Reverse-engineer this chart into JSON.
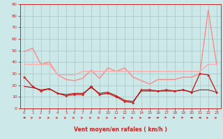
{
  "x": [
    0,
    1,
    2,
    3,
    4,
    5,
    6,
    7,
    8,
    9,
    10,
    11,
    12,
    13,
    14,
    15,
    16,
    17,
    18,
    19,
    20,
    21,
    22,
    23
  ],
  "line_rafales_max": [
    49,
    52,
    38,
    40,
    29,
    25,
    24,
    26,
    33,
    26,
    35,
    32,
    35,
    27,
    24,
    21,
    25,
    25,
    25,
    27,
    27,
    30,
    85,
    38
  ],
  "line_rafales_mean": [
    38,
    38,
    38,
    38,
    29,
    29,
    29,
    32,
    32,
    32,
    32,
    32,
    32,
    32,
    32,
    32,
    32,
    32,
    32,
    32,
    32,
    32,
    38,
    38
  ],
  "line_vent_moyen": [
    27,
    19,
    15,
    17,
    13,
    11,
    12,
    12,
    19,
    12,
    13,
    10,
    6,
    5,
    16,
    16,
    15,
    16,
    15,
    16,
    14,
    30,
    29,
    14
  ],
  "line_vent_base": [
    19,
    18,
    16,
    17,
    13,
    12,
    13,
    13,
    18,
    13,
    14,
    11,
    7,
    6,
    15,
    15,
    15,
    15,
    15,
    16,
    14,
    16,
    16,
    14
  ],
  "background": "#cce8e8",
  "grid_color": "#aacccc",
  "color_salmon": "#ff8888",
  "color_dark_red": "#cc2222",
  "color_mid_red": "#dd4444",
  "color_light_pink": "#ffaaaa",
  "xlabel": "Vent moyen/en rafales ( km/h )",
  "ylim": [
    0,
    90
  ],
  "yticks": [
    0,
    10,
    20,
    30,
    40,
    50,
    60,
    70,
    80,
    90
  ],
  "arrow_angles": [
    180,
    45,
    45,
    45,
    45,
    45,
    45,
    45,
    45,
    45,
    45,
    45,
    45,
    45,
    45,
    0,
    0,
    315,
    315,
    315,
    180,
    180,
    45,
    45
  ]
}
